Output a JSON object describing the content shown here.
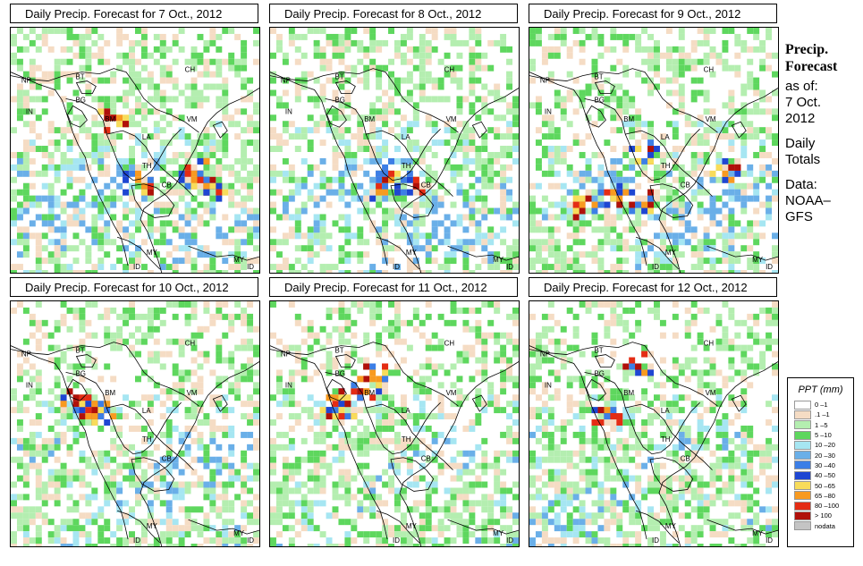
{
  "panels": [
    {
      "title": "Daily Precip. Forecast for  7 Oct., 2012",
      "heavy": [
        [
          0.73,
          0.57
        ],
        [
          0.76,
          0.62
        ],
        [
          0.8,
          0.66
        ],
        [
          0.51,
          0.62
        ],
        [
          0.4,
          0.37
        ]
      ]
    },
    {
      "title": "Daily Precip. Forecast for  8 Oct., 2012",
      "heavy": [
        [
          0.45,
          0.65
        ],
        [
          0.47,
          0.58
        ],
        [
          0.55,
          0.63
        ]
      ]
    },
    {
      "title": "Daily Precip. Forecast for  9 Oct., 2012",
      "heavy": [
        [
          0.78,
          0.58
        ],
        [
          0.43,
          0.7
        ],
        [
          0.21,
          0.72
        ],
        [
          0.32,
          0.68
        ],
        [
          0.44,
          0.5
        ]
      ]
    },
    {
      "title": "Daily Precip. Forecast for  10 Oct., 2012",
      "heavy": [
        [
          0.25,
          0.4
        ],
        [
          0.31,
          0.43
        ],
        [
          0.35,
          0.45
        ]
      ]
    },
    {
      "title": "Daily Precip. Forecast for  11 Oct., 2012",
      "heavy": [
        [
          0.26,
          0.4
        ],
        [
          0.28,
          0.44
        ],
        [
          0.37,
          0.35
        ],
        [
          0.4,
          0.28
        ]
      ]
    },
    {
      "title": "Daily Precip. Forecast for  12 Oct., 2012",
      "heavy": [
        [
          0.43,
          0.25
        ],
        [
          0.29,
          0.46
        ]
      ]
    }
  ],
  "map_labels": [
    "NP",
    "BT",
    "BG",
    "IN",
    "BM",
    "CH",
    "VM",
    "LA",
    "TH",
    "CB",
    "MY",
    "ID",
    "MY",
    "ID"
  ],
  "sidebar": {
    "heading": [
      "Precip.",
      "Forecast"
    ],
    "lines": [
      "as of:",
      "7 Oct.",
      "2012",
      "",
      "Daily",
      "Totals",
      "",
      "Data:",
      "NOAA–",
      "GFS"
    ]
  },
  "legend": {
    "title": "PPT (mm)",
    "entries": [
      {
        "label": "0 –1",
        "color": "#ffffff"
      },
      {
        "label": ".1 –1",
        "color": "#f5dcc4"
      },
      {
        "label": "1 –5",
        "color": "#b4eeb0"
      },
      {
        "label": "5 –10",
        "color": "#5ed75e"
      },
      {
        "label": "10 –20",
        "color": "#a6e6f2"
      },
      {
        "label": "20 –30",
        "color": "#6aafe8"
      },
      {
        "label": "30 –40",
        "color": "#3c7ee6"
      },
      {
        "label": "40 –50",
        "color": "#1e46d2"
      },
      {
        "label": "50 –65",
        "color": "#f8dc5a"
      },
      {
        "label": "65 –80",
        "color": "#f89a20"
      },
      {
        "label": "80 –100",
        "color": "#e42c14"
      },
      {
        "label": "> 100",
        "color": "#b0100a"
      },
      {
        "label": "nodata",
        "color": "#c4c4c4"
      }
    ]
  }
}
